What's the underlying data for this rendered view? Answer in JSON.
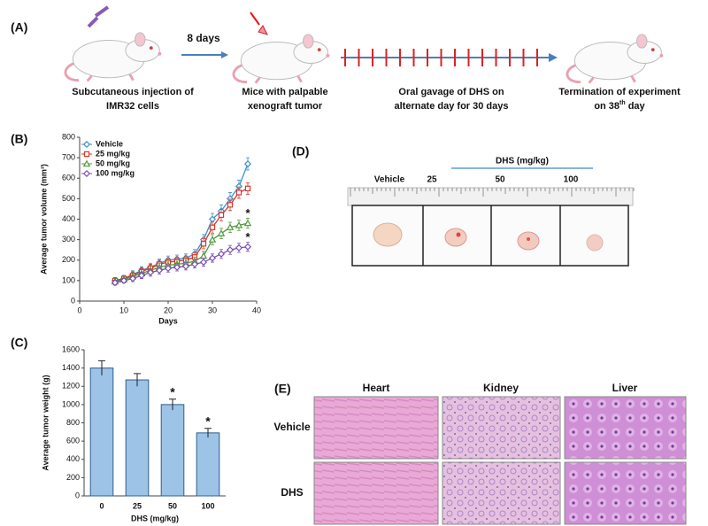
{
  "panel_a": {
    "label": "(A)",
    "interval": "8 days",
    "captions": [
      [
        "Subcutaneous injection of",
        "IMR32 cells"
      ],
      [
        "Mice with palpable",
        "xenograft tumor"
      ],
      [
        "Oral gavage of DHS on",
        "alternate day for 30 days"
      ],
      [
        "Termination of experiment",
        [
          "on 38",
          "th",
          " day"
        ]
      ]
    ]
  },
  "chart_data": [
    {
      "type": "line",
      "label": "(B)",
      "xlabel": "Days",
      "ylabel": "Average tumor volume (mm³)",
      "x": [
        8,
        10,
        12,
        14,
        16,
        18,
        20,
        22,
        24,
        26,
        28,
        30,
        32,
        34,
        36,
        38
      ],
      "xlim": [
        0,
        40
      ],
      "xticks": [
        0,
        10,
        20,
        30,
        40
      ],
      "ylim": [
        0,
        800
      ],
      "yticks": [
        0,
        100,
        200,
        300,
        400,
        500,
        600,
        700,
        800
      ],
      "legend": "upper left",
      "series": [
        {
          "name": "Vehicle",
          "color": "#3b8fc9",
          "marker": "diamond",
          "values": [
            100,
            110,
            130,
            150,
            165,
            185,
            200,
            205,
            210,
            230,
            300,
            400,
            440,
            500,
            560,
            670
          ],
          "errors": [
            15,
            15,
            18,
            18,
            20,
            20,
            20,
            20,
            20,
            22,
            25,
            28,
            30,
            30,
            30,
            30
          ]
        },
        {
          "name": "25 mg/kg",
          "color": "#d9362b",
          "marker": "square",
          "values": [
            100,
            110,
            125,
            145,
            160,
            180,
            190,
            195,
            200,
            215,
            280,
            360,
            420,
            470,
            530,
            550
          ],
          "errors": [
            15,
            15,
            18,
            18,
            20,
            20,
            20,
            20,
            20,
            22,
            25,
            28,
            28,
            28,
            28,
            28
          ]
        },
        {
          "name": "50 mg/kg",
          "color": "#4f9a3a",
          "marker": "triangle",
          "values": [
            95,
            105,
            120,
            135,
            150,
            165,
            175,
            180,
            185,
            195,
            220,
            300,
            330,
            360,
            370,
            380
          ],
          "errors": [
            15,
            15,
            18,
            18,
            20,
            20,
            20,
            20,
            20,
            20,
            22,
            25,
            25,
            25,
            25,
            25
          ],
          "significance": "*"
        },
        {
          "name": "100 mg/kg",
          "color": "#7b4fb5",
          "marker": "diamond",
          "values": [
            90,
            100,
            110,
            125,
            140,
            150,
            160,
            165,
            170,
            180,
            190,
            210,
            230,
            250,
            260,
            265
          ],
          "errors": [
            12,
            12,
            15,
            15,
            18,
            18,
            18,
            18,
            18,
            18,
            20,
            20,
            22,
            22,
            22,
            22
          ],
          "significance": "*"
        }
      ]
    },
    {
      "type": "bar",
      "label": "(C)",
      "xlabel": "DHS (mg/kg)",
      "ylabel": "Average tumor weight (g)",
      "categories": [
        "0",
        "25",
        "50",
        "100"
      ],
      "values": [
        1400,
        1270,
        1000,
        690
      ],
      "errors": [
        80,
        70,
        60,
        50
      ],
      "significance": [
        null,
        null,
        "*",
        "*"
      ],
      "color": "#9dc3e6",
      "ylim": [
        0,
        1600
      ],
      "yticks": [
        0,
        200,
        400,
        600,
        800,
        1000,
        1200,
        1400,
        1600
      ]
    }
  ],
  "panel_d": {
    "label": "(D)",
    "group_label": "DHS (mg/kg)",
    "columns": [
      "Vehicle",
      "25",
      "50",
      "100"
    ]
  },
  "panel_e": {
    "label": "(E)",
    "columns": [
      "Heart",
      "Kidney",
      "Liver"
    ],
    "rows": [
      "Vehicle",
      "DHS"
    ]
  }
}
